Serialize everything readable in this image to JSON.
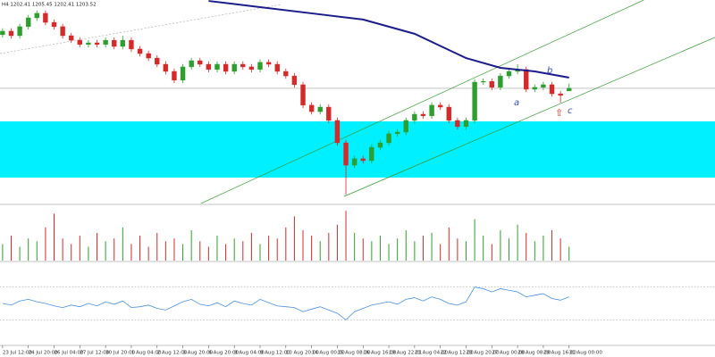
{
  "chart_data": [
    {
      "type": "candlestick",
      "title": "H4 1202.41 1205.45 1202.41 1203.52",
      "xlim": [
        -0.3,
        83.0
      ],
      "xticks": [
        {
          "value": 0,
          "label": "23 Jul 12:00"
        },
        {
          "value": 3,
          "label": "24 Jul 20:00"
        },
        {
          "value": 6,
          "label": "26 Jul 04:00"
        },
        {
          "value": 9,
          "label": "27 Jul 12:00"
        },
        {
          "value": 12,
          "label": "30 Jul 20:00"
        },
        {
          "value": 15,
          "label": "1 Aug 04:00"
        },
        {
          "value": 18,
          "label": "2 Aug 12:00"
        },
        {
          "value": 21,
          "label": "3 Aug 20:00"
        },
        {
          "value": 24,
          "label": "6 Aug 20:00"
        },
        {
          "value": 27,
          "label": "8 Aug 04:00"
        },
        {
          "value": 30,
          "label": "9 Aug 12:00"
        },
        {
          "value": 33,
          "label": "10 Aug 20:00"
        },
        {
          "value": 36,
          "label": "14 Aug 00:00"
        },
        {
          "value": 39,
          "label": "15 Aug 08:00"
        },
        {
          "value": 42,
          "label": "16 Aug 16:00"
        },
        {
          "value": 45,
          "label": "19 Aug 22:01"
        },
        {
          "value": 48,
          "label": "21 Aug 04:00"
        },
        {
          "value": 51,
          "label": "22 Aug 12:00"
        },
        {
          "value": 54,
          "label": "23 Aug 20:00"
        },
        {
          "value": 57,
          "label": "27 Aug 00:00"
        },
        {
          "value": 60,
          "label": "28 Aug 08:00"
        },
        {
          "value": 63,
          "label": "29 Aug 16:00"
        },
        {
          "value": 66,
          "label": "31 Aug 00:00"
        }
      ],
      "ylim": [
        1155.1,
        1240.6
      ],
      "up_color": "#2e9e2e",
      "down_color": "#d42a2a",
      "open": [
        1226.0,
        1227.5,
        1225.6,
        1229.4,
        1233.1,
        1235.0,
        1231.2,
        1229.4,
        1225.6,
        1223.7,
        1221.9,
        1222.6,
        1221.9,
        1223.7,
        1221.1,
        1223.7,
        1220.0,
        1218.1,
        1216.2,
        1213.6,
        1210.6,
        1206.9,
        1212.5,
        1215.1,
        1213.6,
        1211.4,
        1213.6,
        1210.6,
        1213.6,
        1212.5,
        1211.4,
        1214.4,
        1213.6,
        1210.6,
        1208.7,
        1205.0,
        1196.4,
        1193.7,
        1195.6,
        1190.0,
        1180.6,
        1171.2,
        1173.9,
        1173.1,
        1178.7,
        1180.6,
        1184.4,
        1185.1,
        1190.0,
        1192.6,
        1191.9,
        1196.4,
        1195.6,
        1190.0,
        1187.4,
        1190.0,
        1206.1,
        1206.4,
        1203.9,
        1208.7,
        1210.6,
        1211.4,
        1203.1,
        1203.9,
        1205.0,
        1201.2,
        1202.41
      ],
      "high": [
        1228.7,
        1228.7,
        1230.6,
        1234.3,
        1236.2,
        1236.2,
        1232.4,
        1230.6,
        1226.8,
        1224.9,
        1223.8,
        1223.8,
        1224.9,
        1224.9,
        1225.6,
        1224.9,
        1221.2,
        1219.3,
        1217.4,
        1214.8,
        1211.8,
        1213.7,
        1216.3,
        1216.3,
        1214.8,
        1214.8,
        1214.8,
        1214.8,
        1214.8,
        1213.7,
        1215.6,
        1215.6,
        1214.8,
        1211.8,
        1209.9,
        1206.2,
        1197.6,
        1196.8,
        1196.8,
        1191.2,
        1181.8,
        1175.1,
        1175.1,
        1179.9,
        1181.8,
        1185.6,
        1186.3,
        1191.2,
        1193.8,
        1193.8,
        1197.6,
        1197.6,
        1196.8,
        1191.2,
        1191.2,
        1207.3,
        1207.6,
        1207.6,
        1209.9,
        1211.8,
        1213.6,
        1212.6,
        1205.1,
        1206.2,
        1206.2,
        1202.4,
        1205.45
      ],
      "low": [
        1224.8,
        1224.4,
        1224.4,
        1228.2,
        1231.9,
        1230.0,
        1228.2,
        1224.4,
        1222.5,
        1220.7,
        1220.7,
        1220.7,
        1220.7,
        1219.9,
        1219.9,
        1218.8,
        1216.9,
        1215.0,
        1212.4,
        1209.4,
        1205.7,
        1205.7,
        1211.3,
        1212.4,
        1210.2,
        1210.2,
        1209.4,
        1209.4,
        1211.3,
        1210.2,
        1210.2,
        1212.4,
        1209.4,
        1207.5,
        1203.8,
        1195.2,
        1192.5,
        1192.5,
        1188.8,
        1179.4,
        1158.8,
        1170.0,
        1171.9,
        1171.9,
        1177.5,
        1179.4,
        1183.2,
        1183.9,
        1188.8,
        1190.7,
        1190.7,
        1194.4,
        1188.8,
        1186.2,
        1186.2,
        1188.8,
        1204.9,
        1202.7,
        1202.7,
        1207.5,
        1209.4,
        1201.9,
        1201.9,
        1202.7,
        1200.0,
        1197.5,
        1202.41
      ],
      "close": [
        1227.5,
        1225.6,
        1229.4,
        1233.1,
        1235.0,
        1231.2,
        1229.4,
        1225.6,
        1223.7,
        1221.9,
        1222.6,
        1221.9,
        1223.7,
        1221.1,
        1223.7,
        1220.0,
        1218.1,
        1216.2,
        1213.6,
        1210.6,
        1206.9,
        1212.5,
        1215.1,
        1213.6,
        1211.4,
        1213.6,
        1210.6,
        1213.6,
        1212.5,
        1211.4,
        1214.4,
        1213.6,
        1210.6,
        1208.7,
        1205.0,
        1196.4,
        1193.7,
        1195.6,
        1190.0,
        1180.6,
        1171.2,
        1173.9,
        1173.1,
        1178.7,
        1180.6,
        1184.4,
        1185.1,
        1190.0,
        1192.6,
        1191.9,
        1196.4,
        1195.6,
        1190.0,
        1187.4,
        1190.0,
        1206.1,
        1206.4,
        1203.9,
        1208.7,
        1210.6,
        1211.4,
        1203.1,
        1203.9,
        1205.0,
        1201.2,
        1200.5,
        1203.52
      ],
      "zone": [
        1166.0,
        1189.6
      ],
      "zone_color": "#00f0ff",
      "hline": 1203.5,
      "hline_color": "#a0a0a0",
      "ma": {
        "color": "#1c1c8a",
        "x": [
          24,
          30,
          36,
          42,
          48,
          54,
          58,
          62,
          66
        ],
        "values": [
          1240.2,
          1237.6,
          1235.0,
          1232.4,
          1226.4,
          1216.2,
          1212.1,
          1210.6,
          1208.0
        ]
      },
      "lines": [
        {
          "color": "#3a9a3a",
          "x": [
            23.1,
            74.7
          ],
          "values": [
            1155.1,
            1240.6
          ]
        },
        {
          "color": "#3a9a3a",
          "x": [
            39.8,
            83.0
          ],
          "values": [
            1158.1,
            1224.9
          ]
        },
        {
          "color": "#b0b0b0",
          "x": [
            -0.3,
            32.5
          ],
          "values": [
            1218.1,
            1238.7
          ]
        }
      ],
      "annotations": [
        "a",
        "b",
        "c",
        "⇧"
      ]
    },
    {
      "type": "bar",
      "ylim": [
        0,
        100
      ],
      "values": [
        30,
        45,
        25,
        40,
        35,
        60,
        85,
        40,
        30,
        45,
        25,
        50,
        35,
        40,
        60,
        30,
        45,
        25,
        50,
        35,
        40,
        30,
        55,
        35,
        25,
        45,
        30,
        40,
        35,
        50,
        30,
        45,
        40,
        60,
        80,
        55,
        45,
        35,
        50,
        65,
        90,
        50,
        40,
        35,
        45,
        30,
        40,
        55,
        35,
        45,
        50,
        30,
        60,
        40,
        35,
        75,
        45,
        30,
        55,
        40,
        65,
        50,
        35,
        45,
        55,
        40,
        25
      ]
    },
    {
      "type": "line",
      "ylim": [
        0,
        100
      ],
      "levels": [
        70,
        30
      ],
      "color": "#4a90d9",
      "values": [
        50,
        48,
        53,
        55,
        52,
        50,
        47,
        45,
        48,
        46,
        50,
        47,
        52,
        49,
        53,
        45,
        46,
        48,
        44,
        42,
        47,
        52,
        55,
        49,
        47,
        51,
        46,
        53,
        50,
        48,
        55,
        51,
        47,
        46,
        45,
        40,
        43,
        46,
        42,
        38,
        30,
        40,
        44,
        48,
        50,
        52,
        49,
        55,
        57,
        53,
        58,
        55,
        50,
        48,
        52,
        70,
        68,
        64,
        68,
        66,
        64,
        58,
        60,
        62,
        56,
        54,
        58
      ]
    }
  ]
}
